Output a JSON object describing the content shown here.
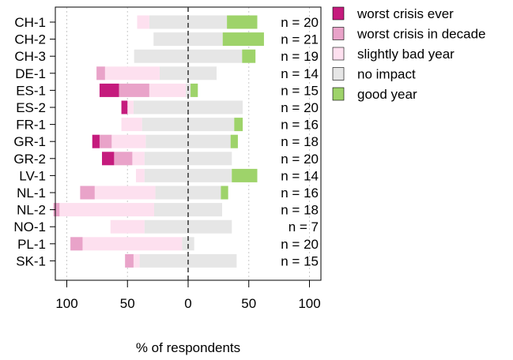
{
  "chart_data": {
    "type": "bar",
    "orientation": "horizontal-diverging",
    "xlabel": "% of respondents",
    "xlim": [
      -100,
      100
    ],
    "xticks": [
      -100,
      -50,
      0,
      50,
      100
    ],
    "xtick_labels": [
      "100",
      "50",
      "0",
      "50",
      "100"
    ],
    "grid": true,
    "legend_position": "top-right",
    "categories": [
      "CH-1",
      "CH-2",
      "CH-3",
      "DE-1",
      "ES-1",
      "ES-2",
      "FR-1",
      "GR-1",
      "GR-2",
      "LV-1",
      "NL-1",
      "NL-2",
      "NO-1",
      "PL-1",
      "SK-1"
    ],
    "n_labels": [
      "n = 20",
      "n = 21",
      "n = 19",
      "n = 14",
      "n = 15",
      "n = 20",
      "n = 16",
      "n = 18",
      "n = 20",
      "n = 14",
      "n = 16",
      "n = 18",
      "n = 7",
      "n = 20",
      "n = 15"
    ],
    "series": [
      {
        "name": "worst crisis ever",
        "color": "#c51b7d",
        "side": "negative",
        "values": [
          0,
          0,
          0,
          0,
          16,
          5,
          0,
          6,
          10,
          0,
          0,
          0,
          0,
          0,
          0
        ]
      },
      {
        "name": "worst crisis in decade",
        "color": "#e9a3c9",
        "side": "negative",
        "values": [
          0,
          0,
          0,
          7,
          25,
          0,
          0,
          10,
          15,
          0,
          12,
          5,
          0,
          10,
          7
        ]
      },
      {
        "name": "slightly bad year",
        "color": "#fde0ef",
        "side": "negative",
        "values": [
          10,
          0,
          0,
          45,
          30,
          5,
          17,
          28,
          10,
          7,
          50,
          78,
          28,
          82,
          5
        ]
      },
      {
        "name": "no impact",
        "color": "#e6e6e6",
        "side": "center",
        "values": [
          64,
          57,
          89,
          47,
          4,
          90,
          76,
          70,
          72,
          72,
          54,
          56,
          72,
          10,
          80
        ]
      },
      {
        "name": "good year",
        "color": "#9ed36a",
        "side": "positive",
        "values": [
          25,
          34,
          11,
          0,
          6,
          0,
          7,
          6,
          0,
          21,
          6,
          0,
          0,
          0,
          0
        ]
      }
    ]
  }
}
